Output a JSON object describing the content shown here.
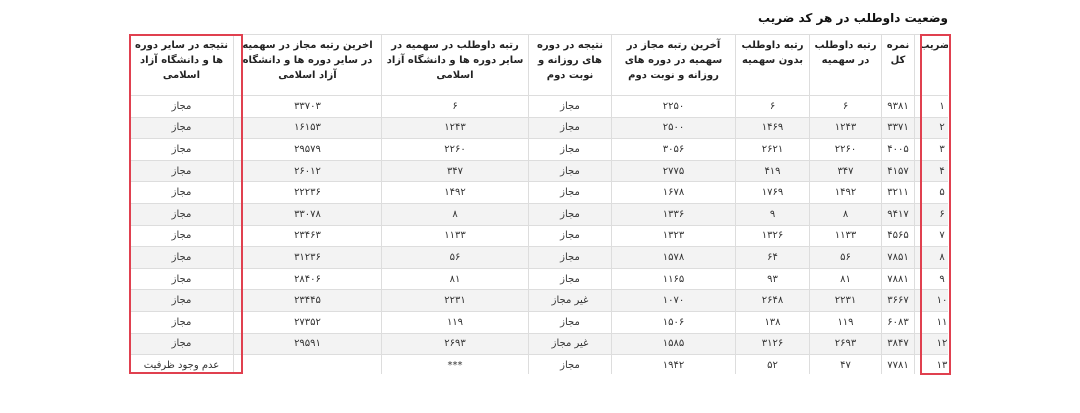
{
  "title": "وضعیت داوطلب در هر کد ضریب",
  "highlight_color": "#e0404f",
  "headers": [
    "کد ضریب",
    "نمره کل",
    "رتبه داوطلب در سهمیه",
    "رتبه داوطلب بدون سهمیه",
    "آخرین رتبه مجاز در سهمیه در دوره های روزانه و نوبت دوم",
    "نتیجه در دوره های روزانه و نوبت دوم",
    "رتبه داوطلب در سهمیه در سایر دوره ها و دانشگاه آزاد اسلامی",
    "اخرین رتبه مجاز در سهمیه در سایر دوره ها و دانشگاه آزاد اسلامی",
    "نتیجه در سایر دوره ها و دانشگاه آزاد اسلامی"
  ],
  "rows": [
    [
      "۱",
      "۹۳۸۱",
      "۶",
      "۶",
      "۲۲۵۰",
      "مجاز",
      "۶",
      "۳۳۷۰۳",
      "مجاز"
    ],
    [
      "۲",
      "۳۳۷۱",
      "۱۲۴۳",
      "۱۴۶۹",
      "۲۵۰۰",
      "مجاز",
      "۱۲۴۳",
      "۱۶۱۵۳",
      "مجاز"
    ],
    [
      "۳",
      "۴۰۰۵",
      "۲۲۶۰",
      "۲۶۲۱",
      "۳۰۵۶",
      "مجاز",
      "۲۲۶۰",
      "۲۹۵۷۹",
      "مجاز"
    ],
    [
      "۴",
      "۴۱۵۷",
      "۳۴۷",
      "۴۱۹",
      "۲۷۷۵",
      "مجاز",
      "۳۴۷",
      "۲۶۰۱۲",
      "مجاز"
    ],
    [
      "۵",
      "۳۲۱۱",
      "۱۴۹۲",
      "۱۷۶۹",
      "۱۶۷۸",
      "مجاز",
      "۱۴۹۲",
      "۲۲۲۳۶",
      "مجاز"
    ],
    [
      "۶",
      "۹۴۱۷",
      "۸",
      "۹",
      "۱۳۳۶",
      "مجاز",
      "۸",
      "۳۳۰۷۸",
      "مجاز"
    ],
    [
      "۷",
      "۴۵۶۵",
      "۱۱۳۳",
      "۱۳۲۶",
      "۱۳۲۳",
      "مجاز",
      "۱۱۳۳",
      "۲۳۴۶۳",
      "مجاز"
    ],
    [
      "۸",
      "۷۸۵۱",
      "۵۶",
      "۶۴",
      "۱۵۷۸",
      "مجاز",
      "۵۶",
      "۳۱۲۳۶",
      "مجاز"
    ],
    [
      "۹",
      "۷۸۸۱",
      "۸۱",
      "۹۳",
      "۱۱۶۵",
      "مجاز",
      "۸۱",
      "۲۸۴۰۶",
      "مجاز"
    ],
    [
      "۱۰",
      "۳۶۶۷",
      "۲۲۳۱",
      "۲۶۴۸",
      "۱۰۷۰",
      "غیر مجاز",
      "۲۲۳۱",
      "۲۳۴۴۵",
      "مجاز"
    ],
    [
      "۱۱",
      "۶۰۸۳",
      "۱۱۹",
      "۱۳۸",
      "۱۵۰۶",
      "مجاز",
      "۱۱۹",
      "۲۷۳۵۲",
      "مجاز"
    ],
    [
      "۱۲",
      "۳۸۴۷",
      "۲۶۹۳",
      "۳۱۲۶",
      "۱۵۸۵",
      "غیر مجاز",
      "۲۶۹۳",
      "۲۹۵۹۱",
      "مجاز"
    ],
    [
      "۱۳",
      "۷۷۸۱",
      "۴۷",
      "۵۲",
      "۱۹۴۲",
      "مجاز",
      "***",
      "",
      "عدم وجود ظرفیت"
    ]
  ]
}
